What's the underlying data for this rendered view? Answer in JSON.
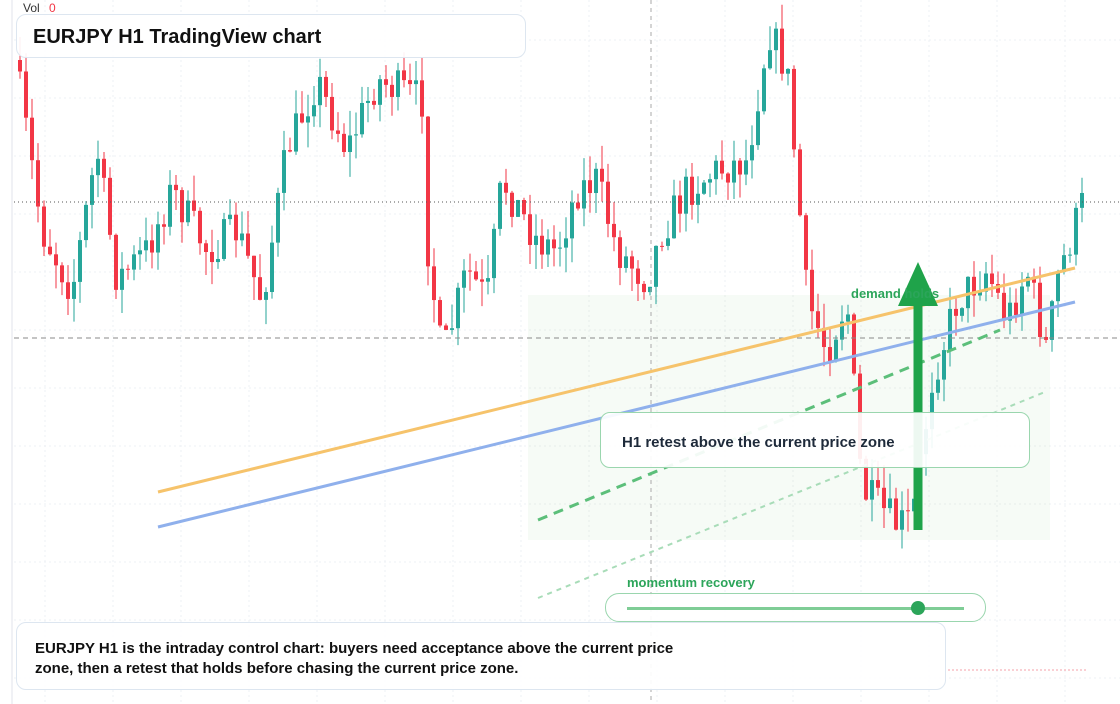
{
  "header": {
    "volume_label": "Vol",
    "volume_value": "0",
    "title": "EURJPY H1 TradingView chart"
  },
  "annotations": {
    "zone_label": "demand holds",
    "retest_label": "H1 retest above the current price zone",
    "momentum_label": "momentum recovery"
  },
  "caption": "EURJPY H1 is the intraday control chart: buyers need acceptance above the current price zone, then a retest that holds before chasing the current price zone."
}
